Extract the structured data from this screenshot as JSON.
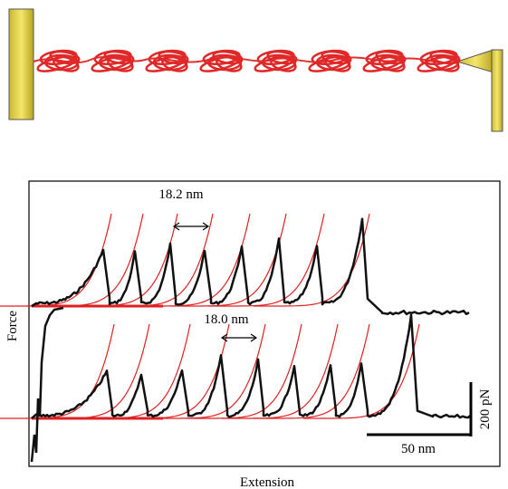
{
  "figure": {
    "y_label": "Force",
    "x_label": "Extension",
    "annotations": [
      "18.2 nm",
      "18.0 nm"
    ],
    "scale_bars": {
      "force": "200 pN",
      "extension": "50 nm"
    }
  }
}
